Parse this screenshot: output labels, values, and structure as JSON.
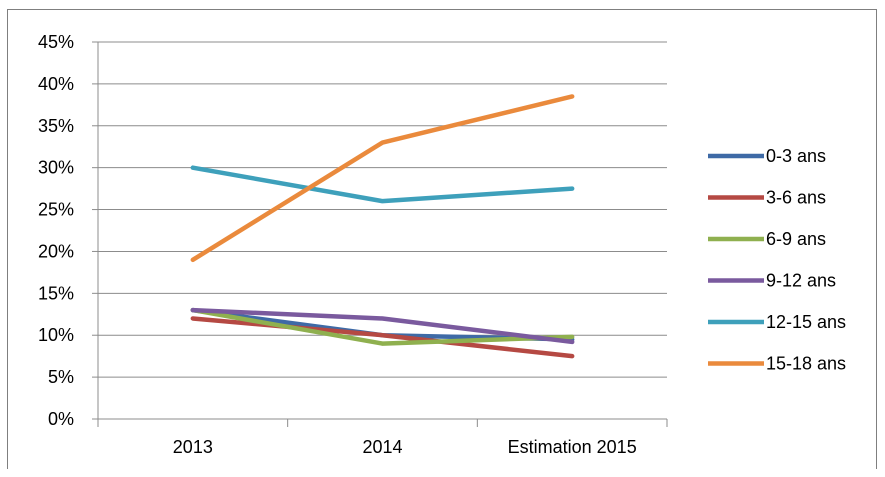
{
  "chart_data": {
    "type": "line",
    "categories": [
      "2013",
      "2014",
      "Estimation 2015"
    ],
    "ylim": [
      0,
      0.45
    ],
    "yticks": [
      "0%",
      "5%",
      "10%",
      "15%",
      "20%",
      "25%",
      "30%",
      "35%",
      "40%",
      "45%"
    ],
    "grid": true,
    "legend_position": "right",
    "series": [
      {
        "name": "0-3 ans",
        "color": "#3e6aa6",
        "values": [
          0.13,
          0.1,
          0.095
        ]
      },
      {
        "name": "3-6 ans",
        "color": "#b54943",
        "values": [
          0.12,
          0.1,
          0.075
        ]
      },
      {
        "name": "6-9 ans",
        "color": "#8fb04f",
        "values": [
          0.13,
          0.09,
          0.098
        ]
      },
      {
        "name": "9-12 ans",
        "color": "#7a5a9e",
        "values": [
          0.13,
          0.12,
          0.092
        ]
      },
      {
        "name": "12-15 ans",
        "color": "#3ea0bb",
        "values": [
          0.3,
          0.26,
          0.275
        ]
      },
      {
        "name": "15-18 ans",
        "color": "#ea8a3c",
        "values": [
          0.19,
          0.33,
          0.385
        ]
      }
    ]
  }
}
